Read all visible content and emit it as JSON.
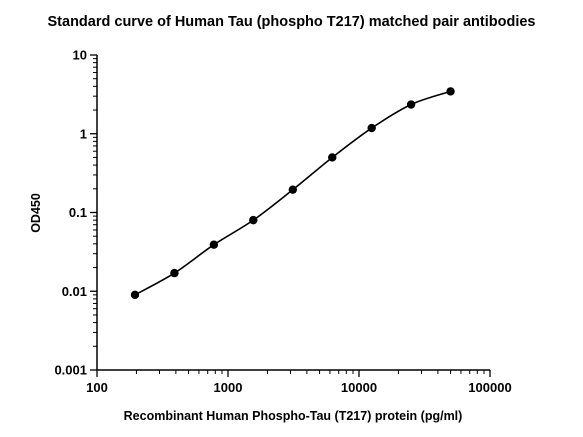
{
  "chart_data": {
    "type": "scatter",
    "title": "Standard curve of Human Tau (phospho T217) matched pair antibodies",
    "xlabel": "Recombinant Human Phospho-Tau (T217) protein (pg/ml)",
    "ylabel": "OD450",
    "x_scale": "log",
    "y_scale": "log",
    "xlim": [
      100,
      100000
    ],
    "ylim": [
      0.001,
      10
    ],
    "x_ticks": [
      "100",
      "1000",
      "10000",
      "100000"
    ],
    "y_ticks": [
      "0.001",
      "0.01",
      "0.1",
      "1",
      "10"
    ],
    "grid": false,
    "series": [
      {
        "x": [
          195,
          390,
          780,
          1560,
          3125,
          6250,
          12500,
          25000,
          50000
        ],
        "y": [
          0.009,
          0.017,
          0.039,
          0.08,
          0.195,
          0.5,
          1.18,
          2.35,
          3.45
        ],
        "marker": "circle",
        "fit_curve": true,
        "color": "#000000"
      }
    ]
  }
}
